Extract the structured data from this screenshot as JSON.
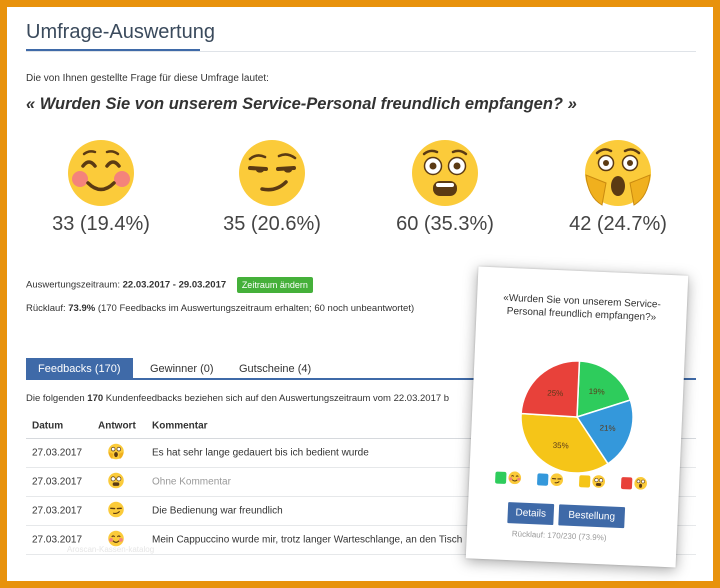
{
  "header": {
    "title": "Umfrage-Auswertung"
  },
  "question": {
    "intro": "Die von Ihnen gestellte Frage für diese Umfrage lautet:",
    "text": "« Wurden Sie von unserem Service-Personal freundlich empfangen? »"
  },
  "ratings": [
    {
      "icon": "smiling-blushing-emoji-icon",
      "stat": "33 (19.4%)"
    },
    {
      "icon": "smirking-emoji-icon",
      "stat": "35 (20.6%)"
    },
    {
      "icon": "grimacing-surprised-emoji-icon",
      "stat": "60 (35.3%)"
    },
    {
      "icon": "screaming-emoji-icon",
      "stat": "42 (24.7%)"
    }
  ],
  "period": {
    "label": "Auswertungszeitraum:",
    "value": "22.03.2017 - 29.03.2017",
    "change_button": "Zeitraum ändern"
  },
  "return_rate": {
    "label": "Rücklauf:",
    "value": "73.9%",
    "detail": "(170 Feedbacks im Auswertungszeitraum erhalten; 60 noch unbeantwortet)"
  },
  "tabs": [
    {
      "label": "Feedbacks (170)",
      "active": true
    },
    {
      "label": "Gewinner (0)",
      "active": false
    },
    {
      "label": "Gutscheine (4)",
      "active": false
    }
  ],
  "feedback_summary": {
    "prefix": "Die folgenden",
    "count": "170",
    "suffix": "Kundenfeedbacks beziehen sich auf den Auswertungszeitraum vom 22.03.2017 b"
  },
  "table": {
    "headers": {
      "date": "Datum",
      "answer": "Antwort",
      "comment": "Kommentar"
    },
    "rows": [
      {
        "date": "27.03.2017",
        "answer_icon": "screaming-emoji-icon",
        "comment": "Es hat sehr lange gedauert bis ich bedient wurde",
        "muted": false
      },
      {
        "date": "27.03.2017",
        "answer_icon": "grimacing-surprised-emoji-icon",
        "comment": "Ohne Kommentar",
        "muted": true
      },
      {
        "date": "27.03.2017",
        "answer_icon": "smirking-emoji-icon",
        "comment": "Die Bedienung war freundlich",
        "muted": false
      },
      {
        "date": "27.03.2017",
        "answer_icon": "smiling-blushing-emoji-icon",
        "comment": "Mein Cappuccino wurde mir, trotz langer Warteschlange, an den Tisch",
        "muted": false
      }
    ]
  },
  "watermark": "Aroscan-Kassen-katalog",
  "widget": {
    "question": "«Wurden Sie von unserem Service-Personal freundlich empfangen?»",
    "details_button": "Details",
    "order_button": "Bestellung",
    "return": "Rücklauf: 170/230 (73.9%)"
  },
  "chart_data": {
    "type": "pie",
    "slices": [
      {
        "label": "19%",
        "value": 19.4,
        "color": "#2ecc5c"
      },
      {
        "label": "21%",
        "value": 20.6,
        "color": "#3498db"
      },
      {
        "label": "35%",
        "value": 35.3,
        "color": "#f5c518"
      },
      {
        "label": "25%",
        "value": 24.7,
        "color": "#e8413a"
      }
    ],
    "legend": [
      {
        "color": "#2ecc5c",
        "icon": "smiling-blushing-emoji-icon"
      },
      {
        "color": "#3498db",
        "icon": "smirking-emoji-icon"
      },
      {
        "color": "#f5c518",
        "icon": "grimacing-surprised-emoji-icon"
      },
      {
        "color": "#e8413a",
        "icon": "screaming-emoji-icon"
      }
    ]
  }
}
